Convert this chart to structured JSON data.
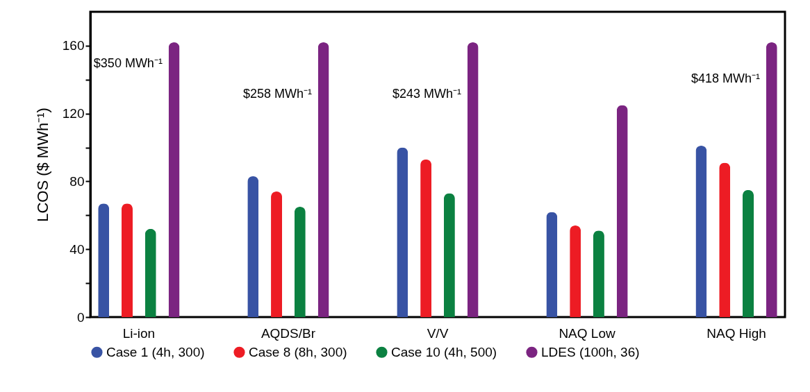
{
  "chart_data": {
    "type": "bar",
    "ylabel": "LCOS ($ MWh⁻¹)",
    "categories": [
      "Li-ion",
      "AQDS/Br",
      "V/V",
      "NAQ Low",
      "NAQ High"
    ],
    "series": [
      {
        "name": "Case 1 (4h, 300)",
        "color": "#3853a4",
        "values": [
          67,
          83,
          100,
          62,
          101
        ]
      },
      {
        "name": "Case 8 (8h, 300)",
        "color": "#ed1c24",
        "values": [
          67,
          74,
          93,
          54,
          91
        ]
      },
      {
        "name": "Case 10 (4h, 500)",
        "color": "#0b8141",
        "values": [
          52,
          65,
          73,
          51,
          75
        ]
      },
      {
        "name": "LDES (100h, 36)",
        "color": "#7b2481",
        "values": [
          162,
          162,
          162,
          125,
          162
        ]
      }
    ],
    "ylim": [
      0,
      180
    ],
    "yticks": [
      0,
      {
        "value": 20,
        "label": null
      },
      40,
      {
        "value": 60,
        "label": null
      },
      80,
      {
        "value": 100,
        "label": null
      },
      120,
      {
        "value": 140,
        "label": null
      },
      160
    ],
    "annotations": [
      "$350 MWh⁻¹",
      "$258 MWh⁻¹",
      "$243 MWh⁻¹",
      "$418 MWh⁻¹"
    ],
    "grid": false,
    "legend": "bottom"
  }
}
